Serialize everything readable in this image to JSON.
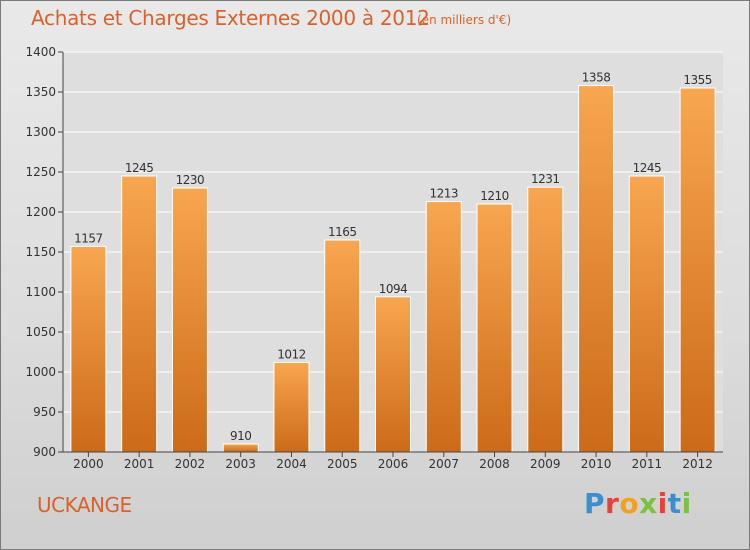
{
  "title": "Achats et Charges Externes 2000 à 2012",
  "subtitle": "(en milliers d'€)",
  "place": "UCKANGE",
  "logo_text": "Proxiti",
  "colors": {
    "text": "#d9622b",
    "bar_light": "#f6a34f",
    "bar_dark": "#cf6e1c",
    "grid": "#ffffff",
    "axis": "#444444"
  },
  "chart_data": {
    "type": "bar",
    "title": "Achats et Charges Externes 2000 à 2012",
    "subtitle": "(en milliers d'€)",
    "xlabel": "",
    "ylabel": "",
    "categories": [
      "2000",
      "2001",
      "2002",
      "2003",
      "2004",
      "2005",
      "2006",
      "2007",
      "2008",
      "2009",
      "2010",
      "2011",
      "2012"
    ],
    "values": [
      1157,
      1245,
      1230,
      910,
      1012,
      1165,
      1094,
      1213,
      1210,
      1231,
      1358,
      1245,
      1355
    ],
    "ylim": [
      900,
      1400
    ],
    "yticks": [
      900,
      950,
      1000,
      1050,
      1100,
      1150,
      1200,
      1250,
      1300,
      1350,
      1400
    ],
    "grid": true,
    "data_labels": true
  }
}
